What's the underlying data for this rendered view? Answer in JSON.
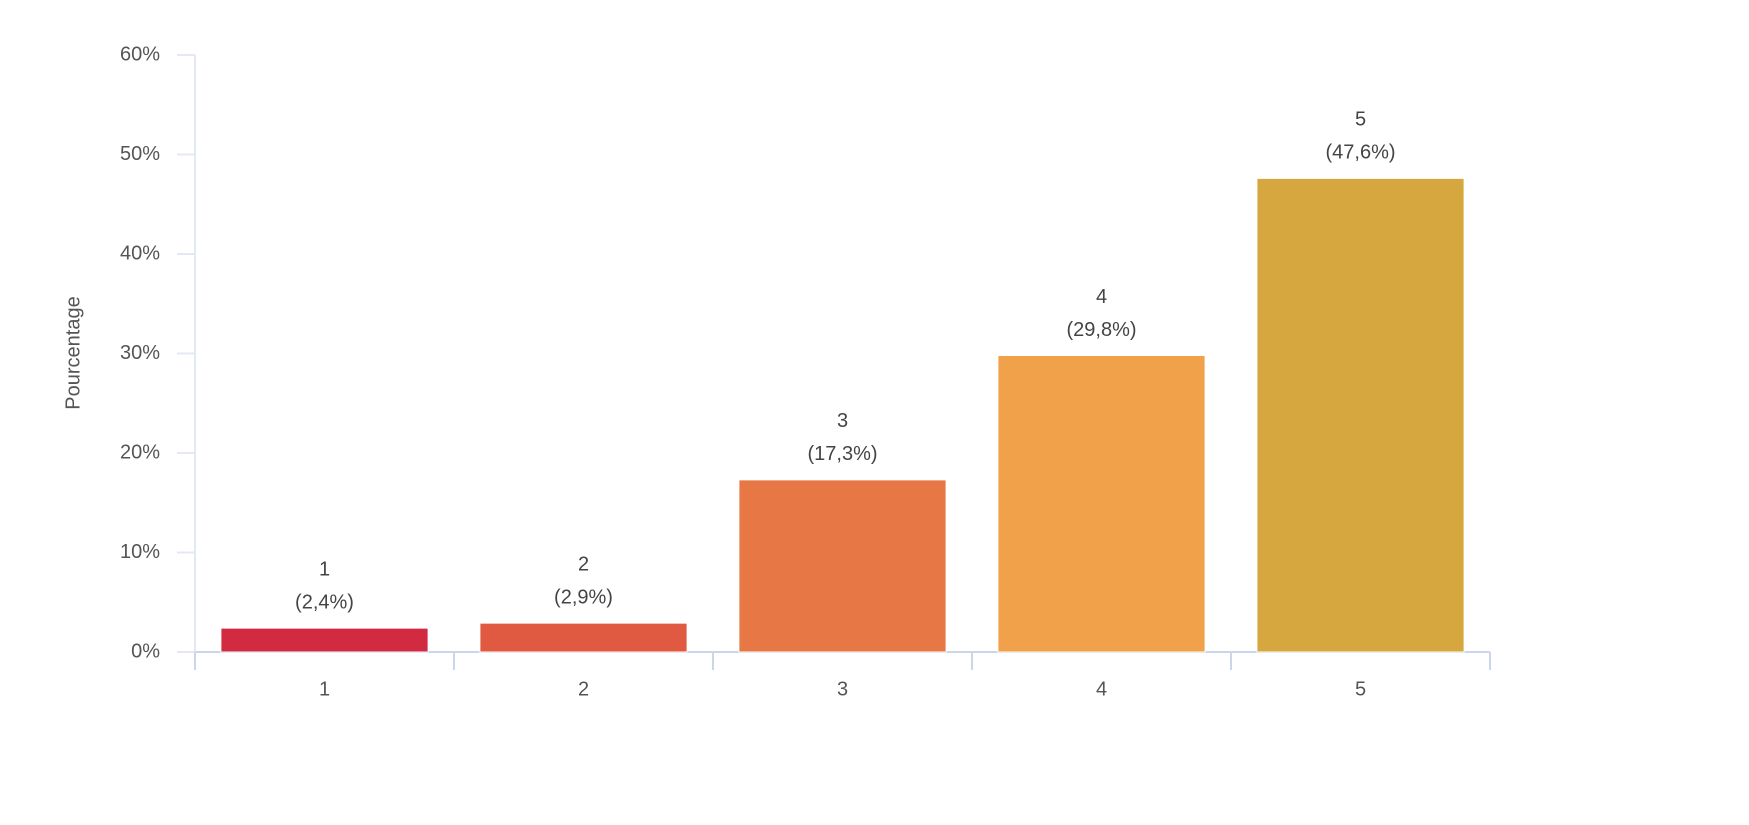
{
  "chart_data": {
    "type": "bar",
    "y_axis_label": "Pourcentage",
    "categories": [
      "1",
      "2",
      "3",
      "4",
      "5"
    ],
    "values": [
      2.4,
      2.9,
      17.3,
      29.8,
      47.6
    ],
    "value_labels": [
      "(2,4%)",
      "(2,9%)",
      "(17,3%)",
      "(29,8%)",
      "(47,6%)"
    ],
    "colors": [
      "#d22a40",
      "#e05a42",
      "#e77845",
      "#f0a14a",
      "#d6a73e"
    ],
    "ylim": [
      0,
      60
    ],
    "yticks": [
      {
        "value": 0,
        "label": "0%"
      },
      {
        "value": 10,
        "label": "10%"
      },
      {
        "value": 20,
        "label": "20%"
      },
      {
        "value": 30,
        "label": "30%"
      },
      {
        "value": 40,
        "label": "40%"
      },
      {
        "value": 50,
        "label": "50%"
      },
      {
        "value": 60,
        "label": "60%"
      }
    ],
    "grid": false
  }
}
